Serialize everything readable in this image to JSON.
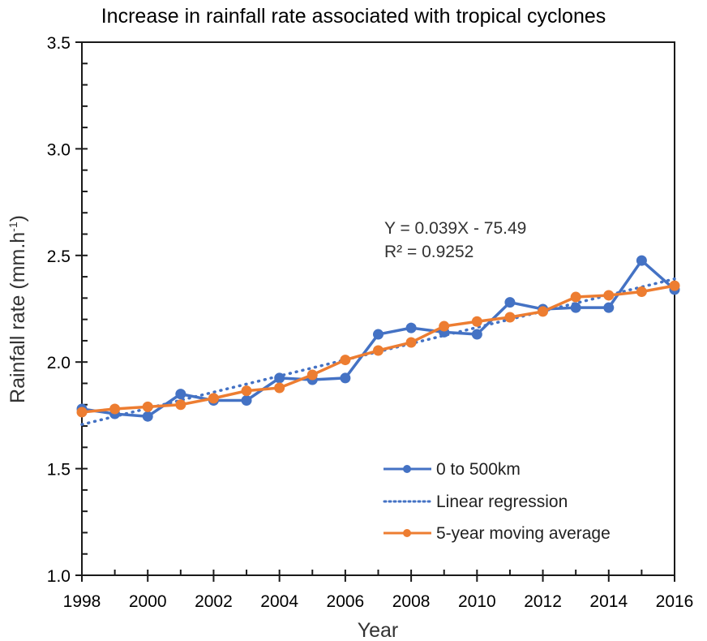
{
  "chart_data": {
    "type": "line",
    "title": "Increase in rainfall rate associated with tropical cyclones",
    "xlabel": "Year",
    "ylabel": "Rainfall rate (mm.h",
    "ylabel_superscript": "-1",
    "ylabel_close": ")",
    "xlim": [
      1998,
      2016
    ],
    "ylim": [
      1.0,
      3.5
    ],
    "x_ticks": [
      1998,
      2000,
      2002,
      2004,
      2006,
      2008,
      2010,
      2012,
      2014,
      2016
    ],
    "x_tick_labels": [
      "1998",
      "2000",
      "2002",
      "2004",
      "2006",
      "2008",
      "2010",
      "2012",
      "2014",
      "2016"
    ],
    "y_ticks": [
      1.0,
      1.5,
      2.0,
      2.5,
      3.0,
      3.5
    ],
    "y_tick_labels": [
      "1.0",
      "1.5",
      "2.0",
      "2.5",
      "3.0",
      "3.5"
    ],
    "y_minor_step": 0.1,
    "grid": false,
    "x": [
      1998,
      1999,
      2000,
      2001,
      2002,
      2003,
      2004,
      2005,
      2006,
      2007,
      2008,
      2009,
      2010,
      2011,
      2012,
      2013,
      2014,
      2015,
      2016
    ],
    "series": [
      {
        "name": "0 to 500km",
        "style": "line-marker",
        "color": "#4472C4",
        "values": [
          1.78,
          1.757,
          1.745,
          1.85,
          1.82,
          1.82,
          1.925,
          1.917,
          1.925,
          2.13,
          2.16,
          2.14,
          2.13,
          2.28,
          2.248,
          2.255,
          2.255,
          2.476,
          2.34
        ]
      },
      {
        "name": "Linear regression",
        "style": "dotted",
        "color": "#4472C4",
        "x": [
          1998,
          2016
        ],
        "values": [
          1.707,
          2.39
        ]
      },
      {
        "name": "5-year moving average",
        "style": "line-marker",
        "color": "#ED7D31",
        "values": [
          1.765,
          1.78,
          1.79,
          1.8,
          1.83,
          1.865,
          1.879,
          1.94,
          2.01,
          2.054,
          2.092,
          2.168,
          2.19,
          2.21,
          2.237,
          2.305,
          2.313,
          2.33,
          2.358
        ]
      }
    ],
    "annotations": [
      "Y = 0.039X - 75.49",
      "R² = 0.9252"
    ],
    "legend_position": "bottom-right",
    "legend": [
      "0 to 500km",
      "Linear regression",
      "5-year moving average"
    ]
  }
}
